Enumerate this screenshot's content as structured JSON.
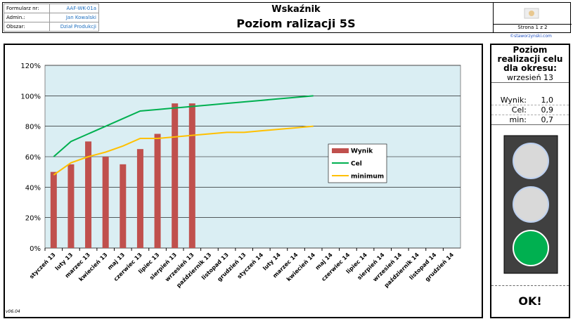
{
  "header": {
    "fields": [
      [
        "Formularz nr:",
        "AAF-WK-01a"
      ],
      [
        "Admin.:",
        "Jan Kowalski"
      ],
      [
        "Obszar:",
        "Dział Produkcji"
      ]
    ],
    "kind": "Wskaźnik",
    "title": "Poziom ralizacji 5S",
    "page": "Strona 1 z 2",
    "site": "©staworzynski.com"
  },
  "chart_data": {
    "type": "bar",
    "categories": [
      "styczeń 13",
      "luty 13",
      "marzec 13",
      "kwiecień 13",
      "maj 13",
      "czerwiec 13",
      "lipiec 13",
      "sierpień 13",
      "wrzesień 13",
      "październik 13",
      "listopad 13",
      "grudzień 13",
      "styczeń 14",
      "luty 14",
      "marzec 14",
      "kwiecień 14",
      "maj 14",
      "czerwiec 14",
      "lipiec 14",
      "sierpień 14",
      "wrzesień 14",
      "październik 14",
      "listopad 14",
      "grudzień 14"
    ],
    "series": [
      {
        "name": "Wynik",
        "type": "bar",
        "color": "#c0504d",
        "values": [
          50,
          55,
          70,
          60,
          55,
          65,
          75,
          95,
          95,
          null,
          null,
          null,
          null,
          null,
          null,
          null,
          null,
          null,
          null,
          null,
          null,
          null,
          null,
          null
        ]
      },
      {
        "name": "Cel",
        "type": "line",
        "color": "#00b050",
        "values": [
          60,
          70,
          75,
          80,
          85,
          90,
          91,
          92,
          93,
          94,
          95,
          96,
          97,
          98,
          99,
          100,
          null,
          null,
          null,
          null,
          null,
          null,
          null,
          null
        ]
      },
      {
        "name": "minimum",
        "type": "line",
        "color": "#ffc000",
        "values": [
          48,
          56,
          60,
          63,
          67,
          72,
          72,
          73,
          74,
          75,
          76,
          76,
          77,
          78,
          79,
          80,
          null,
          null,
          null,
          null,
          null,
          null,
          null,
          null
        ]
      }
    ],
    "ylim": [
      0,
      120
    ],
    "yticks": [
      {
        "value": 0,
        "label": "0%"
      },
      {
        "value": 20,
        "label": "20%"
      },
      {
        "value": 40,
        "label": "40%"
      },
      {
        "value": 60,
        "label": "60%"
      },
      {
        "value": 80,
        "label": "80%"
      },
      {
        "value": 100,
        "label": "100%"
      },
      {
        "value": 120,
        "label": "120%"
      }
    ],
    "grid": true,
    "legend": "right"
  },
  "summary": {
    "title": "Poziom realizacji celu dla okresu:",
    "period": "wrzesień 13",
    "rows": [
      [
        "Wynik:",
        "1,0"
      ],
      [
        "Cel:",
        "0,9"
      ],
      [
        "min:",
        "0,7"
      ]
    ],
    "status": "OK!"
  },
  "version": "v06.04"
}
